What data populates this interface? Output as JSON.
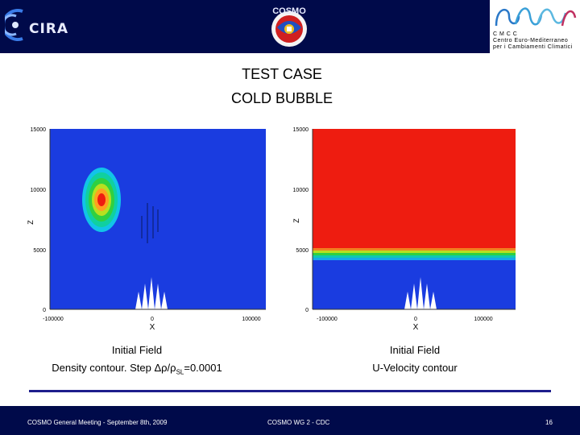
{
  "header": {
    "left_logo_text": "CIRA",
    "center_logo_text": "COSMO",
    "right_logo": {
      "lines": [
        "C M C C",
        "Centro Euro-Mediterraneo",
        "per i Cambiamenti Climatici"
      ]
    }
  },
  "title": {
    "line1": "TEST CASE",
    "line2": "COLD BUBBLE"
  },
  "plots": {
    "left": {
      "ylabel": "Z",
      "xlabel": "X",
      "yticks": [
        "15000",
        "10000",
        "5000",
        "0"
      ],
      "xticks": [
        "-100000",
        "0",
        "100000"
      ]
    },
    "right": {
      "ylabel": "Z",
      "xlabel": "X",
      "yticks": [
        "15000",
        "10000",
        "5000",
        "0"
      ],
      "xticks": [
        "-100000",
        "0",
        "100000"
      ]
    }
  },
  "captions": {
    "left_line1": "Initial Field",
    "left_line2_prefix": "Density contour. Step Δρ/ρ",
    "left_line2_sub": "SL",
    "left_line2_suffix": "=0.0001",
    "right_line1": "Initial Field",
    "right_line2": "U-Velocity contour"
  },
  "footer": {
    "left": "COSMO General Meeting - September 8th, 2009",
    "center": "COSMO WG 2 - CDC",
    "page": "16"
  },
  "colors": {
    "bar": "#000a4a",
    "plot_blue": "#1a3ce0",
    "plot_red": "#ee1c10",
    "divider": "#1e1e8c"
  }
}
